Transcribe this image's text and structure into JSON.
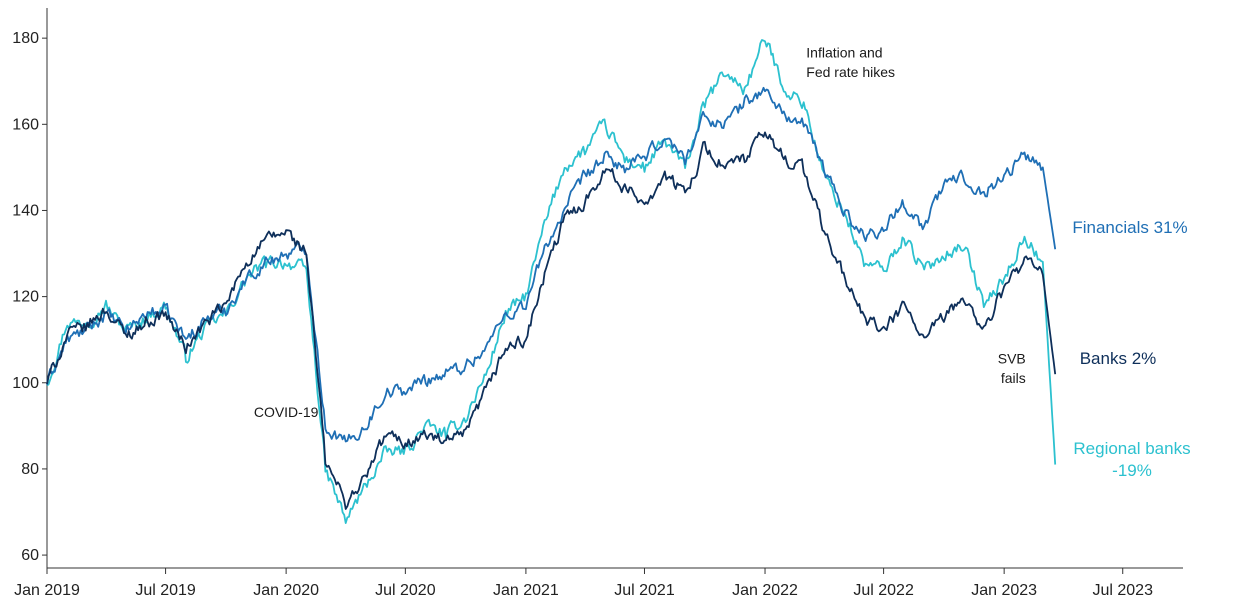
{
  "chart_data": {
    "type": "line",
    "title": "",
    "xlabel": "",
    "ylabel": "",
    "xlim": [
      "2019-01",
      "2023-10"
    ],
    "ylim": [
      57,
      187
    ],
    "grid": false,
    "legend": "end labels at right of lines",
    "y_ticks": [
      60,
      80,
      100,
      120,
      140,
      160,
      180
    ],
    "x_ticks": [
      "Jan 2019",
      "Jul 2019",
      "Jan 2020",
      "Jul 2020",
      "Jan 2021",
      "Jul 2021",
      "Jan 2022",
      "Jul 2022",
      "Jan 2023",
      "Jul 2023"
    ],
    "x_tick_dates": [
      "2019-01",
      "2019-07",
      "2020-01",
      "2020-07",
      "2021-01",
      "2021-07",
      "2022-01",
      "2022-07",
      "2023-01",
      "2023-07"
    ],
    "colors": {
      "financials": "#1f6fb5",
      "banks": "#0e2f5a",
      "regional": "#2cc1cf",
      "axis": "#333333"
    },
    "series": [
      {
        "key": "financials",
        "name": "Financials",
        "label": "Financials 31%",
        "color": "#1f6fb5",
        "points": [
          [
            "2019-01",
            100
          ],
          [
            "2019-02",
            110
          ],
          [
            "2019-03",
            112
          ],
          [
            "2019-04",
            116
          ],
          [
            "2019-05",
            112
          ],
          [
            "2019-06",
            116
          ],
          [
            "2019-07",
            117
          ],
          [
            "2019-08",
            110
          ],
          [
            "2019-09",
            115
          ],
          [
            "2019-10",
            117
          ],
          [
            "2019-11",
            124
          ],
          [
            "2019-12",
            128
          ],
          [
            "2020-01",
            130
          ],
          [
            "2020-02",
            131
          ],
          [
            "2020-03",
            90
          ],
          [
            "2020-04",
            86
          ],
          [
            "2020-05",
            90
          ],
          [
            "2020-06",
            98
          ],
          [
            "2020-07",
            98
          ],
          [
            "2020-08",
            101
          ],
          [
            "2020-09",
            102
          ],
          [
            "2020-10",
            104
          ],
          [
            "2020-11",
            108
          ],
          [
            "2020-12",
            116
          ],
          [
            "2021-01",
            118
          ],
          [
            "2021-02",
            132
          ],
          [
            "2021-03",
            140
          ],
          [
            "2021-04",
            148
          ],
          [
            "2021-05",
            152
          ],
          [
            "2021-06",
            150
          ],
          [
            "2021-07",
            152
          ],
          [
            "2021-08",
            157
          ],
          [
            "2021-09",
            152
          ],
          [
            "2021-10",
            162
          ],
          [
            "2021-11",
            160
          ],
          [
            "2021-12",
            165
          ],
          [
            "2022-01",
            168
          ],
          [
            "2022-02",
            162
          ],
          [
            "2022-03",
            160
          ],
          [
            "2022-04",
            150
          ],
          [
            "2022-05",
            140
          ],
          [
            "2022-06",
            134
          ],
          [
            "2022-07",
            136
          ],
          [
            "2022-08",
            142
          ],
          [
            "2022-09",
            136
          ],
          [
            "2022-10",
            146
          ],
          [
            "2022-11",
            148
          ],
          [
            "2022-12",
            144
          ],
          [
            "2023-01",
            148
          ],
          [
            "2023-02",
            153
          ],
          [
            "2023-03",
            150
          ],
          [
            "2023-03-20",
            131
          ]
        ]
      },
      {
        "key": "banks",
        "name": "Banks",
        "label": "Banks 2%",
        "color": "#0e2f5a",
        "points": [
          [
            "2019-01",
            100
          ],
          [
            "2019-02",
            111
          ],
          [
            "2019-03",
            113
          ],
          [
            "2019-04",
            117
          ],
          [
            "2019-05",
            111
          ],
          [
            "2019-06",
            114
          ],
          [
            "2019-07",
            116
          ],
          [
            "2019-08",
            108
          ],
          [
            "2019-09",
            114
          ],
          [
            "2019-10",
            118
          ],
          [
            "2019-11",
            128
          ],
          [
            "2019-12",
            133
          ],
          [
            "2020-01",
            135
          ],
          [
            "2020-02",
            130
          ],
          [
            "2020-03",
            82
          ],
          [
            "2020-04",
            72
          ],
          [
            "2020-05",
            78
          ],
          [
            "2020-06",
            88
          ],
          [
            "2020-07",
            86
          ],
          [
            "2020-08",
            88
          ],
          [
            "2020-09",
            86
          ],
          [
            "2020-10",
            88
          ],
          [
            "2020-11",
            98
          ],
          [
            "2020-12",
            108
          ],
          [
            "2021-01",
            110
          ],
          [
            "2021-02",
            126
          ],
          [
            "2021-03",
            138
          ],
          [
            "2021-04",
            142
          ],
          [
            "2021-05",
            150
          ],
          [
            "2021-06",
            145
          ],
          [
            "2021-07",
            142
          ],
          [
            "2021-08",
            148
          ],
          [
            "2021-09",
            144
          ],
          [
            "2021-10",
            155
          ],
          [
            "2021-11",
            150
          ],
          [
            "2021-12",
            152
          ],
          [
            "2022-01",
            158
          ],
          [
            "2022-02",
            152
          ],
          [
            "2022-03",
            150
          ],
          [
            "2022-04",
            135
          ],
          [
            "2022-05",
            125
          ],
          [
            "2022-06",
            115
          ],
          [
            "2022-07",
            112
          ],
          [
            "2022-08",
            118
          ],
          [
            "2022-09",
            110
          ],
          [
            "2022-10",
            115
          ],
          [
            "2022-11",
            120
          ],
          [
            "2022-12",
            112
          ],
          [
            "2023-01",
            122
          ],
          [
            "2023-02",
            128
          ],
          [
            "2023-03",
            125
          ],
          [
            "2023-03-20",
            102
          ]
        ]
      },
      {
        "key": "regional",
        "name": "Regional banks",
        "label": "Regional banks\n-19%",
        "color": "#2cc1cf",
        "points": [
          [
            "2019-01",
            100
          ],
          [
            "2019-02",
            114
          ],
          [
            "2019-03",
            114
          ],
          [
            "2019-04",
            118
          ],
          [
            "2019-05",
            112
          ],
          [
            "2019-06",
            115
          ],
          [
            "2019-07",
            118
          ],
          [
            "2019-08",
            106
          ],
          [
            "2019-09",
            113
          ],
          [
            "2019-10",
            116
          ],
          [
            "2019-11",
            124
          ],
          [
            "2019-12",
            128
          ],
          [
            "2020-01",
            128
          ],
          [
            "2020-02",
            126
          ],
          [
            "2020-03",
            80
          ],
          [
            "2020-04",
            68
          ],
          [
            "2020-05",
            76
          ],
          [
            "2020-06",
            84
          ],
          [
            "2020-07",
            84
          ],
          [
            "2020-08",
            90
          ],
          [
            "2020-09",
            88
          ],
          [
            "2020-10",
            92
          ],
          [
            "2020-11",
            102
          ],
          [
            "2020-12",
            116
          ],
          [
            "2021-01",
            120
          ],
          [
            "2021-02",
            138
          ],
          [
            "2021-03",
            150
          ],
          [
            "2021-04",
            154
          ],
          [
            "2021-05",
            160
          ],
          [
            "2021-06",
            152
          ],
          [
            "2021-07",
            150
          ],
          [
            "2021-08",
            156
          ],
          [
            "2021-09",
            150
          ],
          [
            "2021-10",
            165
          ],
          [
            "2021-11",
            172
          ],
          [
            "2021-12",
            168
          ],
          [
            "2022-01",
            180
          ],
          [
            "2022-02",
            168
          ],
          [
            "2022-03",
            165
          ],
          [
            "2022-04",
            148
          ],
          [
            "2022-05",
            140
          ],
          [
            "2022-06",
            128
          ],
          [
            "2022-07",
            126
          ],
          [
            "2022-08",
            134
          ],
          [
            "2022-09",
            126
          ],
          [
            "2022-10",
            130
          ],
          [
            "2022-11",
            132
          ],
          [
            "2022-12",
            118
          ],
          [
            "2023-01",
            124
          ],
          [
            "2023-02",
            134
          ],
          [
            "2023-03",
            128
          ],
          [
            "2023-03-20",
            81
          ]
        ]
      }
    ],
    "annotations": [
      {
        "key": "covid",
        "text": "COVID-19",
        "x": "2020-01",
        "y": 92
      },
      {
        "key": "inflation-1",
        "text": "Inflation and",
        "x": "2022-03-05",
        "y": 175.5
      },
      {
        "key": "inflation-2",
        "text": "Fed rate hikes",
        "x": "2022-03-05",
        "y": 171
      },
      {
        "key": "svb-1",
        "text": "SVB",
        "x": "2023-02-03",
        "y": 104.5
      },
      {
        "key": "svb-2",
        "text": "fails",
        "x": "2023-02-03",
        "y": 100
      }
    ]
  }
}
